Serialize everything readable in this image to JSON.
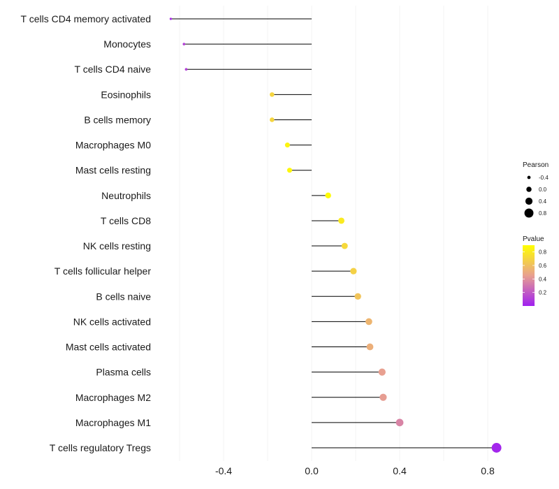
{
  "chart_data": {
    "type": "lollipop",
    "title": "",
    "xlabel": "",
    "ylabel": "",
    "xlim": [
      -0.64,
      0.88
    ],
    "xticks": [
      -0.4,
      0.0,
      0.4,
      0.8
    ],
    "xtick_labels": [
      "-0.4",
      "0.0",
      "0.4",
      "0.8"
    ],
    "grid": true,
    "categories": [
      "T cells CD4 memory activated",
      "Monocytes",
      "T cells CD4 naive",
      "Eosinophils",
      "B cells memory",
      "Macrophages M0",
      "Mast cells resting",
      "Neutrophils",
      "T cells CD8",
      "NK cells resting",
      "T cells follicular helper",
      "B cells naive",
      "NK cells activated",
      "Mast cells activated",
      "Plasma cells",
      "Macrophages M2",
      "Macrophages M1",
      "T cells regulatory  Tregs"
    ],
    "pearson": [
      -0.64,
      -0.58,
      -0.57,
      -0.18,
      -0.18,
      -0.11,
      -0.1,
      0.075,
      0.135,
      0.15,
      0.19,
      0.21,
      0.26,
      0.265,
      0.32,
      0.325,
      0.4,
      0.84
    ],
    "pvalue": [
      0.05,
      0.12,
      0.12,
      0.7,
      0.7,
      0.85,
      0.86,
      0.88,
      0.8,
      0.72,
      0.68,
      0.62,
      0.55,
      0.52,
      0.45,
      0.44,
      0.35,
      0.02
    ],
    "size_legend": {
      "title": "Pearson",
      "values": [
        -0.4,
        0.0,
        0.4,
        0.8
      ],
      "labels": [
        "-0.4",
        "0.0",
        "0.4",
        "0.8"
      ]
    },
    "color_legend": {
      "title": "Pvalue",
      "range": [
        0.0,
        0.9
      ],
      "ticks": [
        0.2,
        0.4,
        0.6,
        0.8
      ],
      "tick_labels": [
        "0.2",
        "0.4",
        "0.6",
        "0.8"
      ],
      "low_color": "#a020f0",
      "mid_color": "#e8a090",
      "high_color": "#ffff00"
    },
    "colors": {
      "stem": "#000000",
      "grid": "#ebebeb",
      "background": "#ffffff"
    }
  }
}
